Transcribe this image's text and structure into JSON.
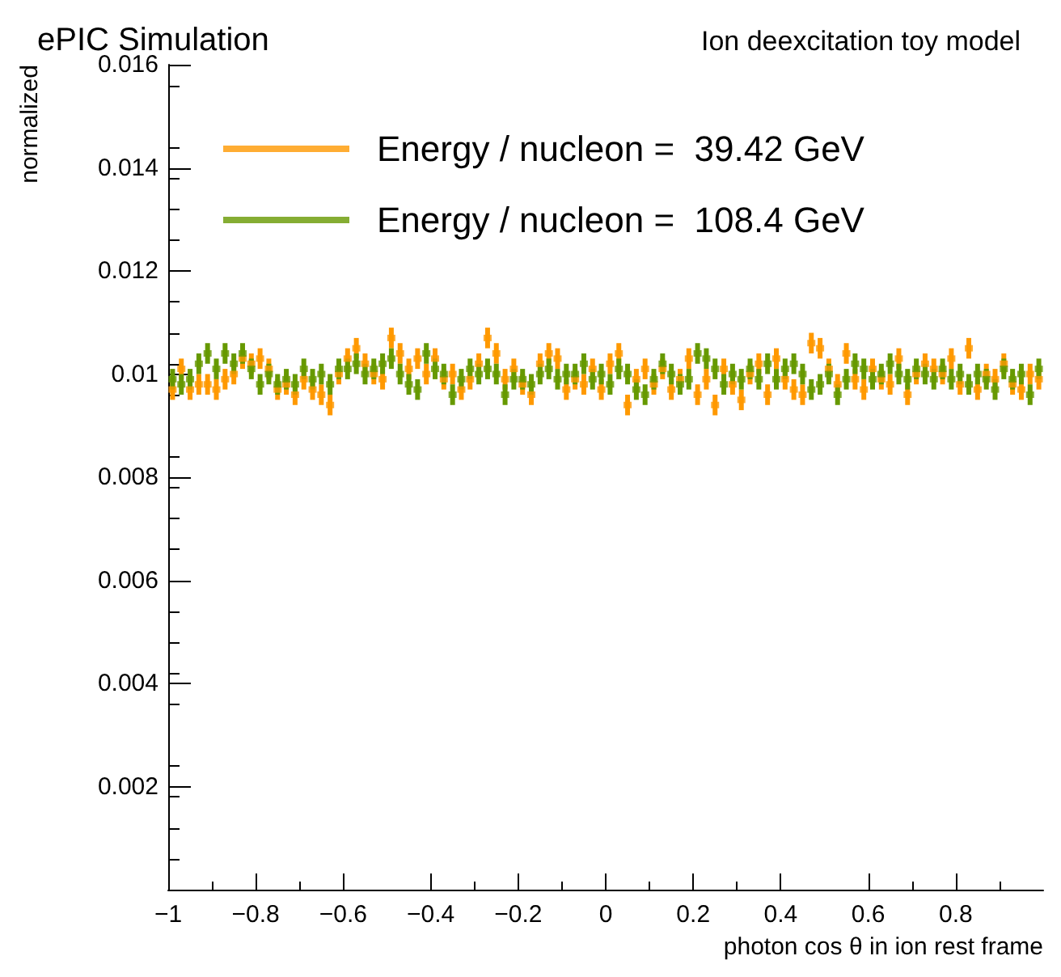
{
  "chart_data": {
    "type": "scatter",
    "title": "ePIC Simulation",
    "subtitle": "Ion deexcitation toy model",
    "xlabel": "photon cos θ in ion rest frame",
    "ylabel": "normalized",
    "x": [
      -0.99,
      -0.97,
      -0.95,
      -0.93,
      -0.91,
      -0.89,
      -0.87,
      -0.85,
      -0.83,
      -0.81,
      -0.79,
      -0.77,
      -0.75,
      -0.73,
      -0.71,
      -0.69,
      -0.67,
      -0.65,
      -0.63,
      -0.61,
      -0.59,
      -0.57,
      -0.55,
      -0.53,
      -0.51,
      -0.49,
      -0.47,
      -0.45,
      -0.43,
      -0.41,
      -0.39,
      -0.37,
      -0.35,
      -0.33,
      -0.31,
      -0.29,
      -0.27,
      -0.25,
      -0.23,
      -0.21,
      -0.19,
      -0.17,
      -0.15,
      -0.13,
      -0.11,
      -0.09,
      -0.07,
      -0.05,
      -0.03,
      -0.01,
      0.01,
      0.03,
      0.05,
      0.07,
      0.09,
      0.11,
      0.13,
      0.15,
      0.17,
      0.19,
      0.21,
      0.23,
      0.25,
      0.27,
      0.29,
      0.31,
      0.33,
      0.35,
      0.37,
      0.39,
      0.41,
      0.43,
      0.45,
      0.47,
      0.49,
      0.51,
      0.53,
      0.55,
      0.57,
      0.59,
      0.61,
      0.63,
      0.65,
      0.67,
      0.69,
      0.71,
      0.73,
      0.75,
      0.77,
      0.79,
      0.81,
      0.83,
      0.85,
      0.87,
      0.89,
      0.91,
      0.93,
      0.95,
      0.97,
      0.99
    ],
    "series": [
      {
        "name": "Energy / nucleon =  39.42 GeV",
        "color": "#ff9900",
        "values": [
          0.0097,
          0.0101,
          0.0097,
          0.0098,
          0.0098,
          0.0097,
          0.0099,
          0.01,
          0.0103,
          0.0102,
          0.0103,
          0.0101,
          0.0097,
          0.0098,
          0.0096,
          0.0099,
          0.0097,
          0.0096,
          0.0094,
          0.01,
          0.0103,
          0.0105,
          0.0102,
          0.01,
          0.0099,
          0.0107,
          0.0104,
          0.0101,
          0.0103,
          0.01,
          0.0103,
          0.0099,
          0.01,
          0.0097,
          0.0099,
          0.0102,
          0.0107,
          0.0104,
          0.0099,
          0.0101,
          0.0098,
          0.0096,
          0.0102,
          0.0104,
          0.0103,
          0.0097,
          0.0099,
          0.0098,
          0.0101,
          0.0097,
          0.0102,
          0.0104,
          0.0094,
          0.0099,
          0.0101,
          0.0098,
          0.0101,
          0.0097,
          0.0099,
          0.0103,
          0.0096,
          0.0099,
          0.0094,
          0.0101,
          0.0098,
          0.0095,
          0.01,
          0.0102,
          0.0096,
          0.0103,
          0.0099,
          0.0097,
          0.0096,
          0.0106,
          0.0105,
          0.0101,
          0.0098,
          0.0104,
          0.0099,
          0.0097,
          0.0101,
          0.0099,
          0.0098,
          0.0103,
          0.0096,
          0.01,
          0.0102,
          0.0101,
          0.01,
          0.0103,
          0.0098,
          0.0105,
          0.0097,
          0.01,
          0.0099,
          0.0102,
          0.0098,
          0.0097,
          0.01,
          0.0099
        ],
        "errors": [
          0.0002,
          0.0002,
          0.0002,
          0.0002,
          0.0002,
          0.0002,
          0.0002,
          0.0002,
          0.0002,
          0.0002,
          0.0002,
          0.0002,
          0.0002,
          0.0002,
          0.0002,
          0.0002,
          0.0002,
          0.0002,
          0.0002,
          0.0002,
          0.0002,
          0.0002,
          0.0002,
          0.0002,
          0.0002,
          0.0002,
          0.0002,
          0.0002,
          0.0002,
          0.0002,
          0.0002,
          0.0002,
          0.0002,
          0.0002,
          0.0002,
          0.0002,
          0.0002,
          0.0002,
          0.0002,
          0.0002,
          0.0002,
          0.0002,
          0.0002,
          0.0002,
          0.0002,
          0.0002,
          0.0002,
          0.0002,
          0.0002,
          0.0002,
          0.0002,
          0.0002,
          0.0002,
          0.0002,
          0.0002,
          0.0002,
          0.0002,
          0.0002,
          0.0002,
          0.0002,
          0.0002,
          0.0002,
          0.0002,
          0.0002,
          0.0002,
          0.0002,
          0.0002,
          0.0002,
          0.0002,
          0.0002,
          0.0002,
          0.0002,
          0.0002,
          0.0002,
          0.0002,
          0.0002,
          0.0002,
          0.0002,
          0.0002,
          0.0002,
          0.0002,
          0.0002,
          0.0002,
          0.0002,
          0.0002,
          0.0002,
          0.0002,
          0.0002,
          0.0002,
          0.0002,
          0.0002,
          0.0002,
          0.0002,
          0.0002,
          0.0002,
          0.0002,
          0.0002,
          0.0002,
          0.0002,
          0.0002
        ]
      },
      {
        "name": "Energy / nucleon =  108.4 GeV",
        "color": "#669900",
        "values": [
          0.0099,
          0.0098,
          0.0099,
          0.0102,
          0.0104,
          0.0101,
          0.0104,
          0.0102,
          0.0104,
          0.0101,
          0.0098,
          0.01,
          0.0098,
          0.0099,
          0.0098,
          0.0101,
          0.0099,
          0.01,
          0.0098,
          0.0101,
          0.0101,
          0.0102,
          0.01,
          0.0101,
          0.0102,
          0.0103,
          0.01,
          0.0098,
          0.0097,
          0.0104,
          0.0101,
          0.01,
          0.0096,
          0.0099,
          0.0101,
          0.01,
          0.0101,
          0.01,
          0.0096,
          0.0099,
          0.0099,
          0.0098,
          0.01,
          0.0101,
          0.0099,
          0.01,
          0.01,
          0.0102,
          0.0099,
          0.01,
          0.0098,
          0.0101,
          0.01,
          0.0097,
          0.0096,
          0.0099,
          0.0102,
          0.01,
          0.0098,
          0.0099,
          0.0104,
          0.0103,
          0.0101,
          0.0098,
          0.01,
          0.0099,
          0.0101,
          0.0099,
          0.0102,
          0.0099,
          0.0101,
          0.0102,
          0.01,
          0.0097,
          0.0098,
          0.01,
          0.0096,
          0.0099,
          0.0102,
          0.0101,
          0.0099,
          0.01,
          0.0102,
          0.01,
          0.0099,
          0.0101,
          0.01,
          0.0099,
          0.0101,
          0.0099,
          0.01,
          0.0098,
          0.01,
          0.0099,
          0.0097,
          0.0101,
          0.0099,
          0.01,
          0.0096,
          0.0101
        ],
        "errors": [
          0.0002,
          0.0002,
          0.0002,
          0.0002,
          0.0002,
          0.0002,
          0.0002,
          0.0002,
          0.0002,
          0.0002,
          0.0002,
          0.0002,
          0.0002,
          0.0002,
          0.0002,
          0.0002,
          0.0002,
          0.0002,
          0.0002,
          0.0002,
          0.0002,
          0.0002,
          0.0002,
          0.0002,
          0.0002,
          0.0002,
          0.0002,
          0.0002,
          0.0002,
          0.0002,
          0.0002,
          0.0002,
          0.0002,
          0.0002,
          0.0002,
          0.0002,
          0.0002,
          0.0002,
          0.0002,
          0.0002,
          0.0002,
          0.0002,
          0.0002,
          0.0002,
          0.0002,
          0.0002,
          0.0002,
          0.0002,
          0.0002,
          0.0002,
          0.0002,
          0.0002,
          0.0002,
          0.0002,
          0.0002,
          0.0002,
          0.0002,
          0.0002,
          0.0002,
          0.0002,
          0.0002,
          0.0002,
          0.0002,
          0.0002,
          0.0002,
          0.0002,
          0.0002,
          0.0002,
          0.0002,
          0.0002,
          0.0002,
          0.0002,
          0.0002,
          0.0002,
          0.0002,
          0.0002,
          0.0002,
          0.0002,
          0.0002,
          0.0002,
          0.0002,
          0.0002,
          0.0002,
          0.0002,
          0.0002,
          0.0002,
          0.0002,
          0.0002,
          0.0002,
          0.0002,
          0.0002,
          0.0002,
          0.0002,
          0.0002,
          0.0002,
          0.0002,
          0.0002,
          0.0002,
          0.0002,
          0.0002
        ]
      }
    ],
    "xlim": [
      -1,
      1
    ],
    "xticks": [
      -1,
      -0.8,
      -0.6,
      -0.4,
      -0.2,
      0,
      0.2,
      0.4,
      0.6,
      0.8
    ],
    "ylim": [
      0,
      0.016
    ],
    "yticks": [
      {
        "value": 0,
        "label": null
      },
      0.002,
      0.004,
      0.006,
      0.008,
      0.01,
      0.012,
      0.014,
      0.016
    ],
    "marker": "square",
    "legend": "top left",
    "grid": false
  }
}
